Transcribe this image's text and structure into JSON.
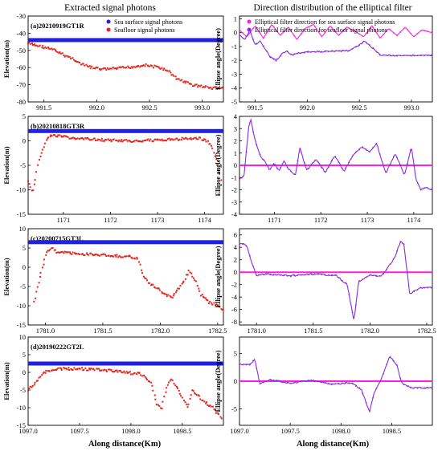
{
  "figure": {
    "left_column_title": "Extracted signal photons",
    "right_column_title": "Direction distribution of the elliptical filter",
    "x_axis_label": "Along distance(Km)",
    "colors": {
      "surface": "#1f1fe6",
      "seafloor": "#e8231b",
      "ellipse_surface": "#ff1fe0",
      "ellipse_seafloor": "#8a2be2"
    }
  },
  "chart_data": [
    {
      "type": "scatter",
      "panel": "a-left",
      "title": "(a)20210919GT1R",
      "ylabel": "Elevation(m)",
      "xlim": [
        991.35,
        993.2
      ],
      "ylim": [
        -80,
        -30
      ],
      "xticks": [
        991.5,
        992.0,
        992.5,
        993.0
      ],
      "xtick_labels": [
        "991.5",
        "992.0",
        "992.5",
        "993.0"
      ],
      "yticks": [
        -30,
        -40,
        -50,
        -60,
        -70,
        -80
      ],
      "ytick_labels": [
        "-30",
        "-40",
        "-50",
        "-60",
        "-70",
        "-80"
      ],
      "legend": {
        "position": "top-center",
        "entries": [
          "Sea surface signal photons",
          "Seafloor signal photons"
        ]
      },
      "series": [
        {
          "name": "Sea surface signal photons",
          "color": "#1f1fe6",
          "x": [
            991.35,
            993.2
          ],
          "y": [
            -44,
            -44
          ]
        },
        {
          "name": "Seafloor signal photons",
          "color": "#e8231b",
          "x": [
            991.35,
            991.42,
            991.5,
            991.6,
            991.7,
            991.78,
            991.85,
            991.95,
            992.05,
            992.2,
            992.35,
            992.45,
            992.55,
            992.62,
            992.7,
            992.75,
            992.82,
            992.9,
            993.0,
            993.1,
            993.2
          ],
          "y": [
            -46,
            -47,
            -48,
            -50,
            -53,
            -55,
            -58,
            -60,
            -61,
            -60.5,
            -59.5,
            -58.5,
            -59.5,
            -60.5,
            -63,
            -66,
            -68,
            -70,
            -71,
            -72,
            -72
          ]
        }
      ]
    },
    {
      "type": "line",
      "panel": "a-right",
      "ylabel": "Ellipse angle(Degree)",
      "xlim": [
        991.35,
        993.2
      ],
      "ylim": [
        -5,
        1.2
      ],
      "xticks": [
        991.5,
        992.0,
        992.5,
        993.0
      ],
      "xtick_labels": [
        "991.5",
        "992.0",
        "992.5",
        "993.0"
      ],
      "yticks": [
        1,
        0,
        -1,
        -2,
        -3,
        -4,
        -5
      ],
      "ytick_labels": [
        "1",
        "0",
        "-1",
        "-2",
        "-3",
        "-4",
        "-5"
      ],
      "legend": {
        "position": "top-center",
        "entries": [
          "Elliptical filter direction for sea surface signal photons",
          "Elliptical filter direction for seafloor signal photons"
        ]
      },
      "series": [
        {
          "name": "Elliptical filter direction for sea surface signal photons",
          "color": "#ff1fe0",
          "x": [
            991.35,
            991.42,
            991.5,
            991.58,
            991.66,
            991.74,
            991.82,
            991.9,
            991.98,
            992.06,
            992.14,
            992.22,
            992.3,
            992.38,
            992.46,
            992.54,
            992.62,
            992.7,
            992.78,
            992.86,
            992.94,
            993.02,
            993.1,
            993.2
          ],
          "y": [
            0.2,
            -0.3,
            0.5,
            -0.4,
            0.6,
            -0.2,
            0.4,
            -0.5,
            0.3,
            0.6,
            -0.3,
            0.5,
            -0.2,
            0.4,
            0.1,
            -0.3,
            0.5,
            -0.4,
            0.3,
            -0.2,
            0.4,
            -0.3,
            0.2,
            0.0
          ]
        },
        {
          "name": "Elliptical filter direction for seafloor signal photons",
          "color": "#8a2be2",
          "x": [
            991.35,
            991.4,
            991.45,
            991.5,
            991.55,
            991.6,
            991.65,
            991.7,
            991.75,
            991.8,
            991.85,
            991.9,
            992.0,
            992.2,
            992.4,
            992.5,
            992.55,
            992.6,
            992.65,
            992.7,
            992.8,
            993.0,
            993.2
          ],
          "y": [
            -0.2,
            -0.5,
            0.2,
            -0.9,
            -0.6,
            -1.2,
            -1.8,
            -2.0,
            -1.6,
            -1.3,
            -1.6,
            -1.5,
            -1.4,
            -1.35,
            -1.3,
            -0.9,
            -0.6,
            -0.9,
            -1.3,
            -1.6,
            -1.65,
            -1.65,
            -1.65
          ]
        }
      ]
    },
    {
      "type": "scatter",
      "panel": "b-left",
      "title": "(b)20210818GT3R",
      "ylabel": "Elevation(m)",
      "xlim": [
        1170.25,
        1174.4
      ],
      "ylim": [
        -15,
        5
      ],
      "xticks": [
        1171,
        1172,
        1173,
        1174
      ],
      "xtick_labels": [
        "1171",
        "1172",
        "1173",
        "1174"
      ],
      "yticks": [
        5,
        0,
        -5,
        -10,
        -15
      ],
      "ytick_labels": [
        "5",
        "0",
        "-5",
        "-10",
        "-15"
      ],
      "series": [
        {
          "name": "Sea surface signal photons",
          "color": "#1f1fe6",
          "x": [
            1170.25,
            1174.4
          ],
          "y": [
            2,
            2
          ]
        },
        {
          "name": "Seafloor signal photons",
          "color": "#e8231b",
          "x": [
            1170.25,
            1170.3,
            1170.35,
            1170.4,
            1170.45,
            1170.55,
            1170.65,
            1170.8,
            1171.2,
            1171.8,
            1172.5,
            1173.2,
            1173.7,
            1173.9,
            1174.05,
            1174.15,
            1174.22,
            1174.3,
            1174.35
          ],
          "y": [
            -8,
            -9.5,
            -10.5,
            -8,
            -5,
            -2,
            0.5,
            1.2,
            0.5,
            0.2,
            0,
            0.2,
            0.5,
            0.5,
            0,
            -1,
            -3,
            -6,
            -8
          ]
        }
      ]
    },
    {
      "type": "line",
      "panel": "b-right",
      "ylabel": "Ellipse angle(Degree)",
      "xlim": [
        1170.25,
        1174.4
      ],
      "ylim": [
        -4,
        4
      ],
      "xticks": [
        1171,
        1172,
        1173,
        1174
      ],
      "xtick_labels": [
        "1171",
        "1172",
        "1173",
        "1174"
      ],
      "yticks": [
        4,
        3,
        2,
        1,
        0,
        -1,
        -2,
        -3,
        -4
      ],
      "ytick_labels": [
        "4",
        "3",
        "2",
        "1",
        "0",
        "-1",
        "-2",
        "-3",
        "-4"
      ],
      "series": [
        {
          "name": "Elliptical filter direction for sea surface signal photons",
          "color": "#ff1fe0",
          "x": [
            1170.25,
            1174.4
          ],
          "y": [
            0,
            0
          ]
        },
        {
          "name": "Elliptical filter direction for seafloor signal photons",
          "color": "#8a2be2",
          "x": [
            1170.25,
            1170.35,
            1170.45,
            1170.5,
            1170.55,
            1170.6,
            1170.7,
            1170.8,
            1170.9,
            1171.0,
            1171.1,
            1171.2,
            1171.3,
            1171.45,
            1171.55,
            1171.7,
            1171.9,
            1172.1,
            1172.3,
            1172.5,
            1172.7,
            1172.9,
            1173.05,
            1173.2,
            1173.4,
            1173.6,
            1173.8,
            1173.95,
            1174.05,
            1174.15,
            1174.25,
            1174.4
          ],
          "y": [
            -1.2,
            -0.8,
            3.2,
            3.8,
            2.6,
            1.9,
            0.8,
            0.3,
            -0.4,
            0.2,
            -0.5,
            0.4,
            -0.3,
            -0.8,
            1.4,
            -0.4,
            0.5,
            -0.6,
            0.8,
            -0.5,
            0.9,
            1.5,
            1.1,
            1.8,
            -0.7,
            1.0,
            -0.8,
            1.5,
            -1.2,
            -2.0,
            -1.8,
            -2.0
          ]
        }
      ]
    },
    {
      "type": "scatter",
      "panel": "c-left",
      "title": "(c)20200715GT3L",
      "ylabel": "Elevation(m)",
      "xlim": [
        1780.85,
        1782.55
      ],
      "ylim": [
        -15,
        10
      ],
      "xticks": [
        1781.0,
        1781.5,
        1782.0,
        1782.5
      ],
      "xtick_labels": [
        "1781.0",
        "1781.5",
        "1782.0",
        "1782.5"
      ],
      "yticks": [
        10,
        5,
        0,
        -5,
        -10,
        -15
      ],
      "ytick_labels": [
        "10",
        "5",
        "0",
        "-5",
        "-10",
        "-15"
      ],
      "series": [
        {
          "name": "Sea surface signal photons",
          "color": "#1f1fe6",
          "x": [
            1780.85,
            1782.55
          ],
          "y": [
            6.5,
            6.5
          ]
        },
        {
          "name": "Seafloor signal photons",
          "color": "#e8231b",
          "x": [
            1780.9,
            1780.95,
            1781.0,
            1781.05,
            1781.1,
            1781.3,
            1781.6,
            1781.8,
            1781.85,
            1781.9,
            1782.0,
            1782.1,
            1782.2,
            1782.25,
            1782.3,
            1782.35,
            1782.42,
            1782.5,
            1782.55
          ],
          "y": [
            -9,
            -3,
            3,
            5,
            4,
            3.5,
            3,
            2.5,
            -2,
            -4,
            -6,
            -8,
            -4,
            -1,
            -3,
            -7,
            -9,
            -10,
            -11
          ]
        }
      ]
    },
    {
      "type": "line",
      "panel": "c-right",
      "ylabel": "Ellipse angle(Degree)",
      "xlim": [
        1780.85,
        1782.55
      ],
      "ylim": [
        -8.5,
        7
      ],
      "xticks": [
        1781.0,
        1781.5,
        1782.0,
        1782.5
      ],
      "xtick_labels": [
        "1781.0",
        "1781.5",
        "1782.0",
        "1782.5"
      ],
      "yticks": [
        6,
        4,
        2,
        0,
        -2,
        -4,
        -6,
        -8
      ],
      "ytick_labels": [
        "6",
        "4",
        "2",
        "0",
        "-2",
        "-4",
        "-6",
        "-8"
      ],
      "series": [
        {
          "name": "Elliptical filter direction for sea surface signal photons",
          "color": "#ff1fe0",
          "x": [
            1780.85,
            1782.55
          ],
          "y": [
            0,
            0
          ]
        },
        {
          "name": "Elliptical filter direction for seafloor signal photons",
          "color": "#8a2be2",
          "x": [
            1780.85,
            1780.9,
            1780.92,
            1780.95,
            1781.0,
            1781.1,
            1781.3,
            1781.5,
            1781.7,
            1781.8,
            1781.83,
            1781.86,
            1781.9,
            1782.0,
            1782.1,
            1782.15,
            1782.22,
            1782.27,
            1782.3,
            1782.35,
            1782.45,
            1782.55
          ],
          "y": [
            4.5,
            4.5,
            4,
            2,
            -0.5,
            -0.3,
            -0.6,
            -0.3,
            -0.5,
            -2,
            -5,
            -7.8,
            -1.5,
            -0.5,
            -0.6,
            0.5,
            2.5,
            5,
            4.5,
            -3.5,
            -2.5,
            -2.5
          ]
        }
      ]
    },
    {
      "type": "scatter",
      "panel": "d-left",
      "title": "(d)20190222GT2L",
      "ylabel": "Elevation(m)",
      "xlim": [
        1097.0,
        1098.9
      ],
      "ylim": [
        -15,
        10
      ],
      "xticks": [
        1097.0,
        1097.5,
        1098.0,
        1098.5
      ],
      "xtick_labels": [
        "1097.0",
        "1097.5",
        "1098.0",
        "1098.5"
      ],
      "yticks": [
        10,
        5,
        0,
        -5,
        -10,
        -15
      ],
      "ytick_labels": [
        "10",
        "5",
        "0",
        "-5",
        "-10",
        "-15"
      ],
      "series": [
        {
          "name": "Sea surface signal photons",
          "color": "#1f1fe6",
          "x": [
            1097.0,
            1098.9
          ],
          "y": [
            2.5,
            2.5
          ]
        },
        {
          "name": "Seafloor signal photons",
          "color": "#e8231b",
          "x": [
            1097.0,
            1097.08,
            1097.15,
            1097.25,
            1097.5,
            1097.8,
            1098.1,
            1098.2,
            1098.25,
            1098.3,
            1098.35,
            1098.4,
            1098.48,
            1098.55,
            1098.6,
            1098.7,
            1098.8,
            1098.88
          ],
          "y": [
            -5,
            -2.5,
            0,
            1,
            1,
            0.5,
            -0.5,
            -3,
            -9,
            -10,
            -4,
            -2,
            -6,
            -10,
            -5,
            -8,
            -10,
            -13
          ]
        }
      ]
    },
    {
      "type": "line",
      "panel": "d-right",
      "ylabel": "Ellipse angle(Degree)",
      "xlim": [
        1097.0,
        1098.9
      ],
      "ylim": [
        -8,
        8
      ],
      "xticks": [
        1097.0,
        1097.5,
        1098.0,
        1098.5
      ],
      "xtick_labels": [
        "1097.0",
        "1097.5",
        "1098.0",
        "1098.5"
      ],
      "yticks": [
        5,
        0,
        -5
      ],
      "ytick_labels": [
        "5",
        "0",
        "-5"
      ],
      "series": [
        {
          "name": "Elliptical filter direction for sea surface signal photons",
          "color": "#ff1fe0",
          "x": [
            1097.0,
            1098.9
          ],
          "y": [
            0,
            0
          ]
        },
        {
          "name": "Elliptical filter direction for seafloor signal photons",
          "color": "#8a2be2",
          "x": [
            1097.0,
            1097.1,
            1097.15,
            1097.2,
            1097.3,
            1097.5,
            1097.7,
            1097.9,
            1098.1,
            1098.2,
            1098.28,
            1098.33,
            1098.4,
            1098.48,
            1098.55,
            1098.6,
            1098.7,
            1098.9
          ],
          "y": [
            3,
            3,
            4,
            -0.5,
            0.3,
            -0.4,
            0.2,
            -0.5,
            -0.3,
            -1.5,
            -5.5,
            -2,
            0.5,
            4.5,
            3,
            -0.5,
            -1.2,
            -1.2
          ]
        }
      ]
    }
  ]
}
